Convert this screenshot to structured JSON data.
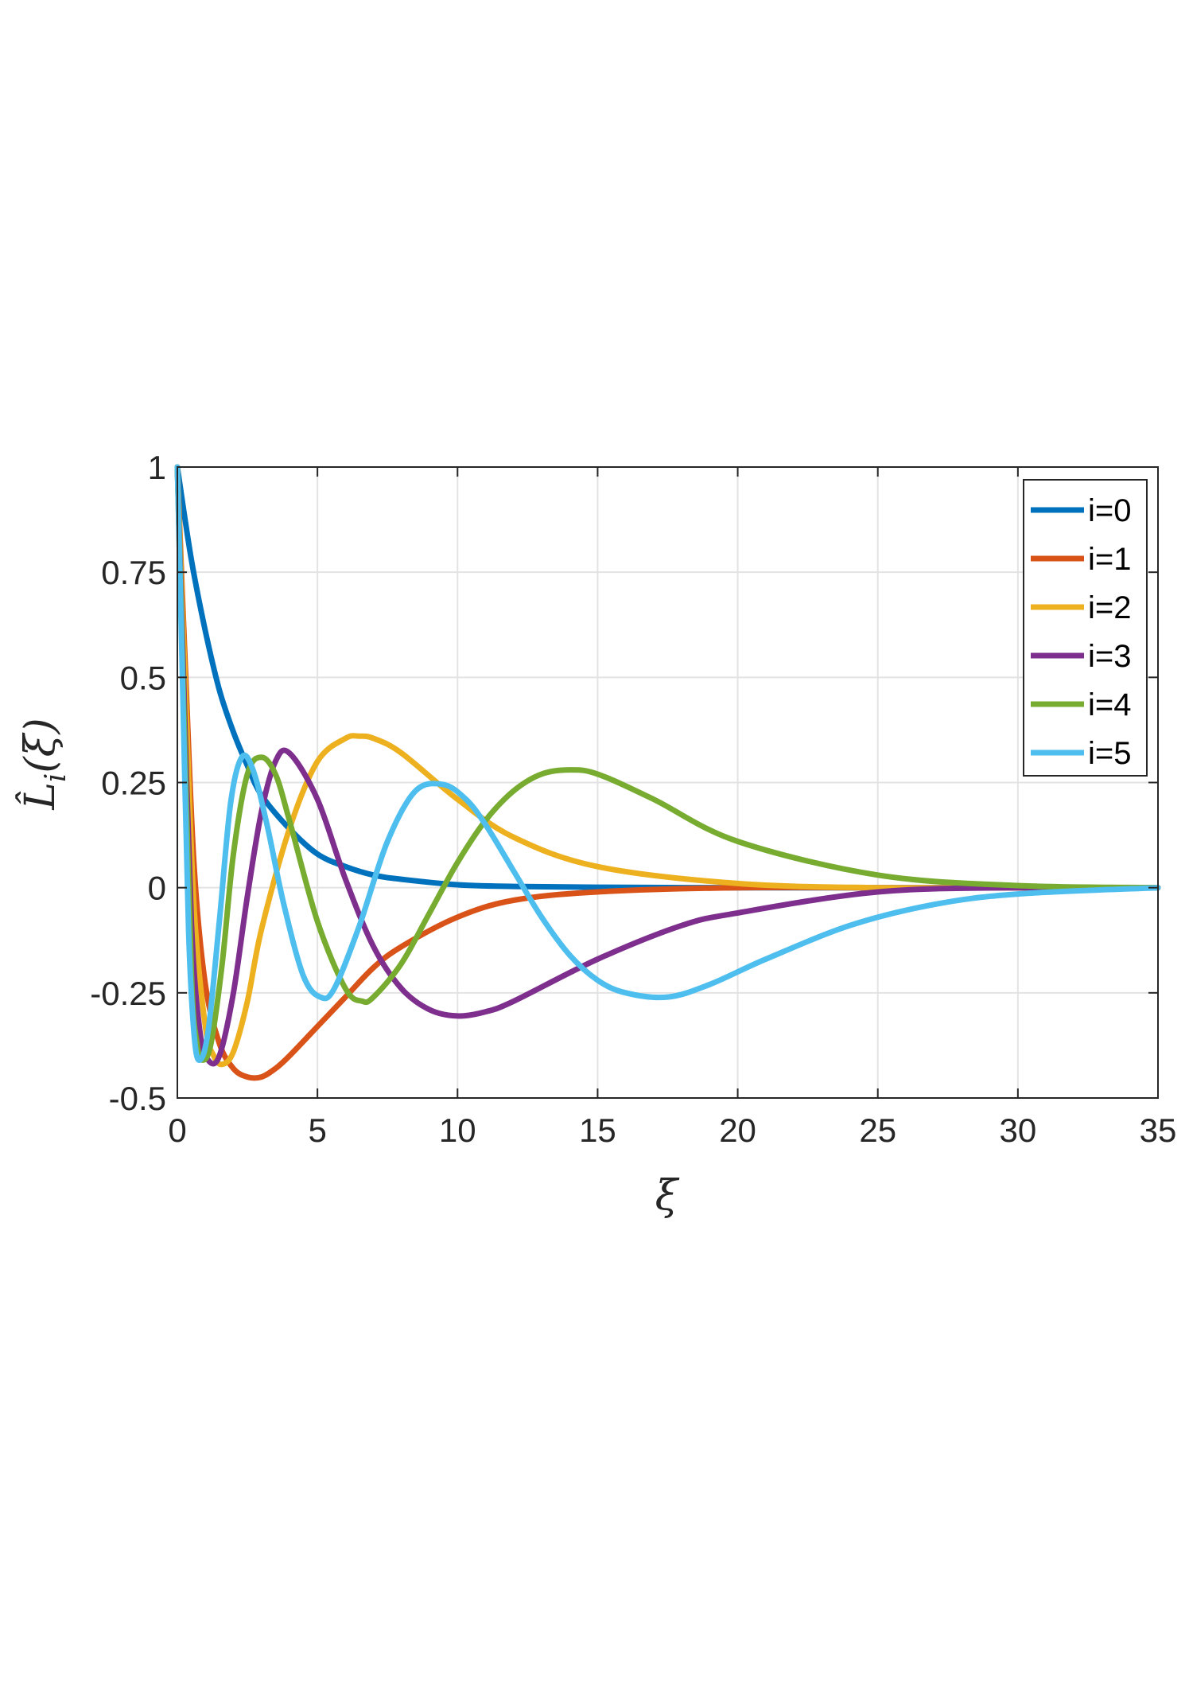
{
  "chart_data": {
    "type": "line",
    "title": "",
    "xlabel": "ξ",
    "ylabel": "L̂",
    "ylabel_sub": "i",
    "ylabel_arg": "(ξ)",
    "xlim": [
      0,
      35
    ],
    "ylim": [
      -0.5,
      1
    ],
    "grid": true,
    "legend_position": "top-right",
    "x_ticks": [
      0,
      5,
      10,
      15,
      20,
      25,
      30,
      35
    ],
    "x_tick_labels": [
      "0",
      "5",
      "10",
      "15",
      "20",
      "25",
      "30",
      "35"
    ],
    "y_ticks": [
      1,
      0.75,
      0.5,
      0.25,
      0,
      -0.25,
      -0.5
    ],
    "y_tick_labels": [
      "1",
      "0.75",
      "0.5",
      "0.25",
      "0",
      "-0.25",
      "-0.5"
    ],
    "series": [
      {
        "name": "i=0",
        "color": "#0072BD",
        "x": [
          0,
          0.5,
          1,
          1.5,
          2,
          2.5,
          3,
          4,
          5,
          6,
          7,
          8,
          10,
          12,
          15,
          20,
          25,
          30,
          35
        ],
        "y": [
          1,
          0.78,
          0.61,
          0.47,
          0.37,
          0.29,
          0.22,
          0.14,
          0.08,
          0.05,
          0.03,
          0.02,
          0.007,
          0.003,
          0.001,
          0,
          0,
          0,
          0
        ]
      },
      {
        "name": "i=1",
        "color": "#D95319",
        "x": [
          0,
          0.3,
          0.6,
          1,
          1.5,
          2,
          2.5,
          3,
          3.5,
          4,
          5,
          6,
          7,
          8,
          10,
          12,
          15,
          20,
          25,
          30,
          35
        ],
        "y": [
          1,
          0.5,
          0.05,
          -0.23,
          -0.37,
          -0.43,
          -0.45,
          -0.45,
          -0.43,
          -0.4,
          -0.33,
          -0.26,
          -0.19,
          -0.14,
          -0.07,
          -0.03,
          -0.01,
          0,
          0,
          0,
          0
        ]
      },
      {
        "name": "i=2",
        "color": "#EDB120",
        "x": [
          0,
          0.3,
          0.6,
          1,
          1.3,
          1.6,
          2,
          2.5,
          3,
          4,
          5,
          6,
          6.5,
          7,
          8,
          10,
          12,
          15,
          20,
          25,
          30,
          35
        ],
        "y": [
          1,
          0.45,
          -0.05,
          -0.33,
          -0.4,
          -0.42,
          -0.39,
          -0.27,
          -0.1,
          0.14,
          0.3,
          0.355,
          0.36,
          0.355,
          0.32,
          0.21,
          0.12,
          0.05,
          0.01,
          0,
          0,
          0
        ]
      },
      {
        "name": "i=3",
        "color": "#7E2F8E",
        "x": [
          0,
          0.2,
          0.5,
          0.8,
          1.1,
          1.5,
          2,
          2.5,
          3,
          3.5,
          4,
          5,
          6,
          7,
          8,
          9,
          10,
          11,
          12,
          15,
          18,
          20,
          25,
          30,
          35
        ],
        "y": [
          1,
          0.55,
          -0.08,
          -0.34,
          -0.41,
          -0.4,
          -0.25,
          -0.02,
          0.18,
          0.3,
          0.32,
          0.21,
          0.02,
          -0.14,
          -0.24,
          -0.29,
          -0.305,
          -0.295,
          -0.27,
          -0.17,
          -0.09,
          -0.06,
          -0.01,
          0,
          0
        ]
      },
      {
        "name": "i=4",
        "color": "#77AC30",
        "x": [
          0,
          0.2,
          0.5,
          0.7,
          0.9,
          1.2,
          1.6,
          2,
          2.5,
          3,
          3.5,
          4,
          5,
          6,
          6.6,
          7,
          8,
          9,
          10,
          11,
          12,
          13,
          14,
          15,
          17,
          20,
          25,
          30,
          35
        ],
        "y": [
          1,
          0.5,
          -0.2,
          -0.37,
          -0.41,
          -0.37,
          -0.18,
          0.08,
          0.27,
          0.31,
          0.27,
          0.16,
          -0.08,
          -0.24,
          -0.27,
          -0.26,
          -0.18,
          -0.06,
          0.06,
          0.16,
          0.23,
          0.27,
          0.28,
          0.27,
          0.21,
          0.11,
          0.03,
          0.005,
          0
        ]
      },
      {
        "name": "i=5",
        "color": "#4DBEEE",
        "x": [
          0,
          0.2,
          0.4,
          0.6,
          0.8,
          1.1,
          1.5,
          1.9,
          2.3,
          2.7,
          3.2,
          3.8,
          4.5,
          5.1,
          5.6,
          6.5,
          7.5,
          8.5,
          9.5,
          10.3,
          11,
          12,
          13,
          14,
          15,
          16,
          17.5,
          19,
          21,
          24,
          27,
          30,
          35
        ],
        "y": [
          1,
          0.45,
          -0.1,
          -0.35,
          -0.41,
          -0.34,
          -0.08,
          0.2,
          0.31,
          0.28,
          0.15,
          -0.04,
          -0.21,
          -0.26,
          -0.24,
          -0.09,
          0.11,
          0.23,
          0.245,
          0.21,
          0.15,
          0.04,
          -0.07,
          -0.16,
          -0.22,
          -0.25,
          -0.26,
          -0.23,
          -0.17,
          -0.09,
          -0.04,
          -0.015,
          0
        ]
      }
    ]
  }
}
